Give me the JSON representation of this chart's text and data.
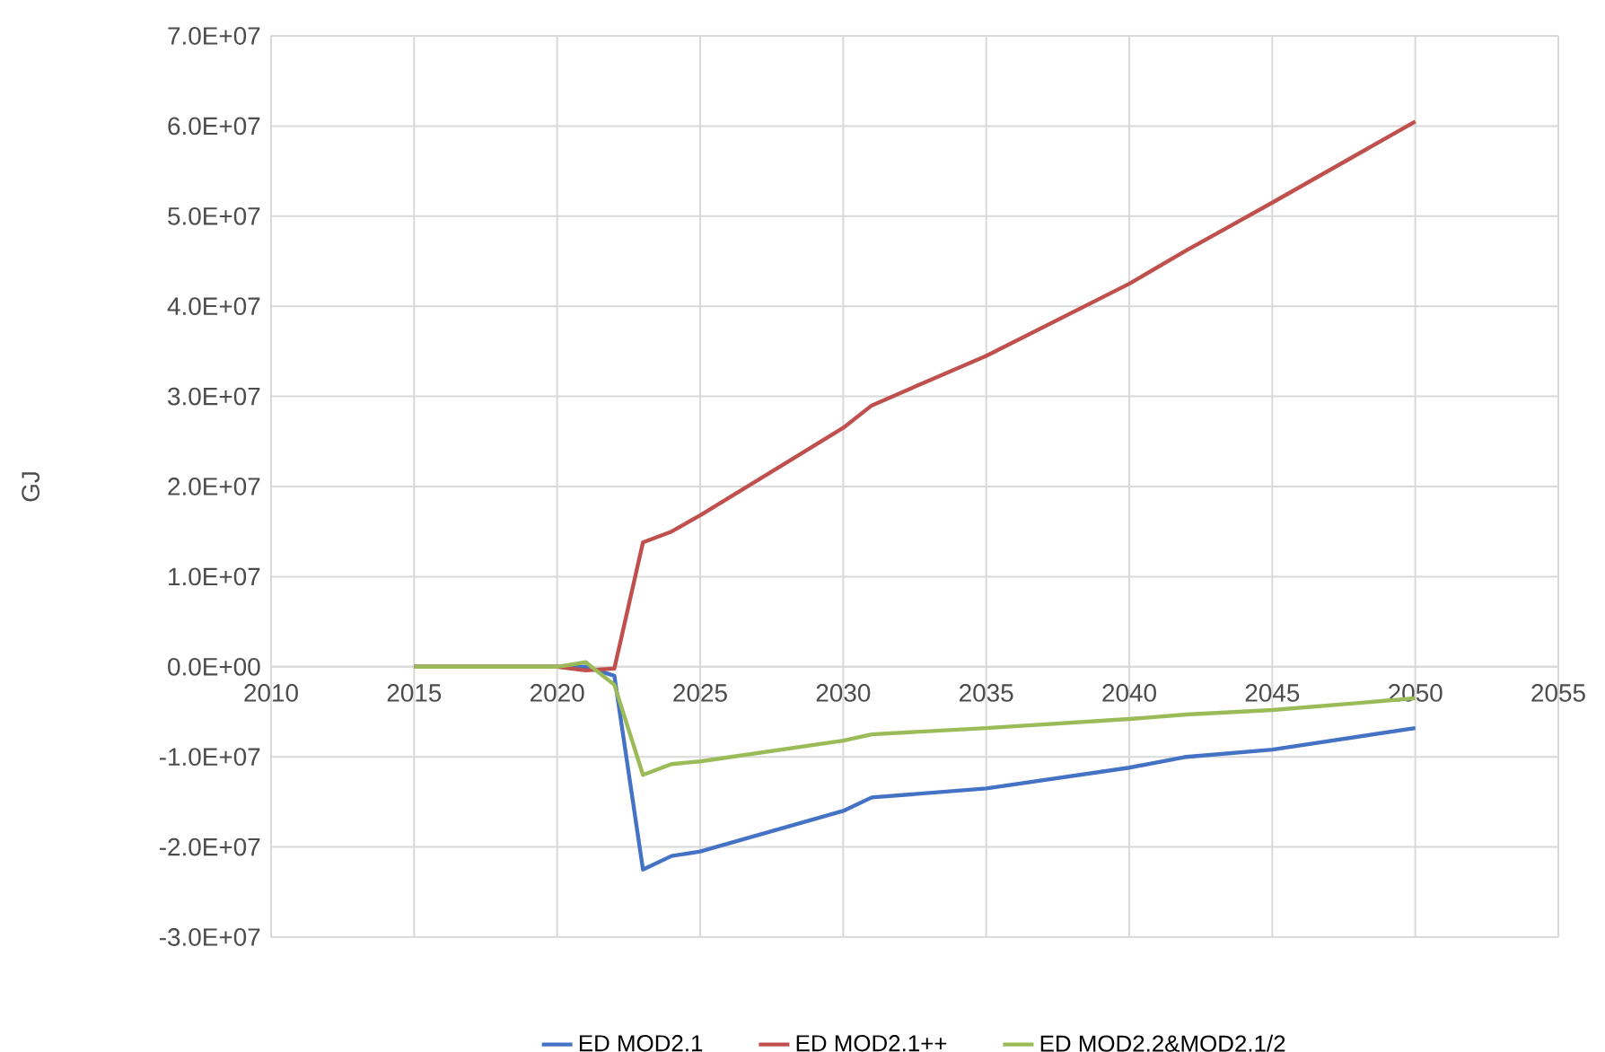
{
  "chart_data": {
    "type": "line",
    "ylabel": "GJ",
    "x": [
      2015,
      2020,
      2021,
      2022,
      2023,
      2024,
      2025,
      2030,
      2031,
      2035,
      2040,
      2042,
      2045,
      2050
    ],
    "series": [
      {
        "name": "ED MOD2.1",
        "color": "#4472c4",
        "values": [
          0,
          0,
          0,
          -1000000,
          -22500000,
          -21000000,
          -20500000,
          -16000000,
          -14500000,
          -13500000,
          -11200000,
          -10000000,
          -9200000,
          -6800000
        ]
      },
      {
        "name": "ED MOD2.1++",
        "color": "#c0504d",
        "values": [
          0,
          0,
          -400000,
          -200000,
          13800000,
          15000000,
          16800000,
          26500000,
          29000000,
          34500000,
          42500000,
          46200000,
          51500000,
          60500000
        ]
      },
      {
        "name": "ED MOD2.2&MOD2.1/2",
        "color": "#9bbb59",
        "values": [
          0,
          0,
          500000,
          -2000000,
          -12000000,
          -10800000,
          -10500000,
          -8200000,
          -7500000,
          -6800000,
          -5800000,
          -5300000,
          -4800000,
          -3500000
        ]
      }
    ],
    "xlim": [
      2010,
      2055
    ],
    "xticks": [
      2010,
      2015,
      2020,
      2025,
      2030,
      2035,
      2040,
      2045,
      2050,
      2055
    ],
    "ylim": [
      -30000000,
      70000000
    ],
    "yticks": [
      {
        "value": -30000000,
        "label": "-3.0E+07"
      },
      {
        "value": -20000000,
        "label": "-2.0E+07"
      },
      {
        "value": -10000000,
        "label": "-1.0E+07"
      },
      {
        "value": 0,
        "label": "0.0E+00"
      },
      {
        "value": 10000000,
        "label": "1.0E+07"
      },
      {
        "value": 20000000,
        "label": "2.0E+07"
      },
      {
        "value": 30000000,
        "label": "3.0E+07"
      },
      {
        "value": 40000000,
        "label": "4.0E+07"
      },
      {
        "value": 50000000,
        "label": "5.0E+07"
      },
      {
        "value": 60000000,
        "label": "6.0E+07"
      },
      {
        "value": 70000000,
        "label": "7.0E+07"
      }
    ],
    "grid": true,
    "legend": "bottom",
    "marker": "none",
    "line_style": "solid"
  }
}
